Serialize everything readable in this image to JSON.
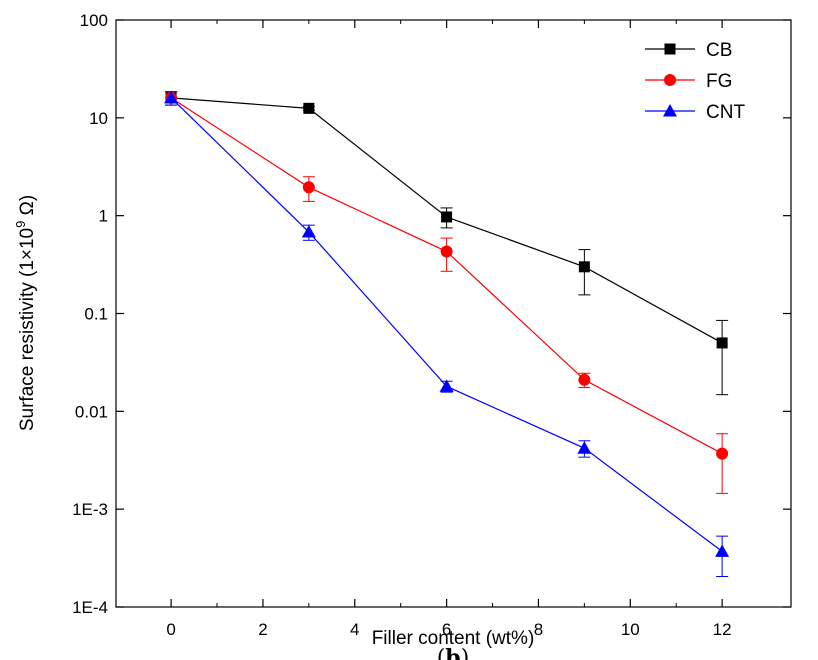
{
  "chart_data": {
    "type": "line",
    "xlabel": "Filler content (wt%)",
    "ylabel_main": "Surface resistivity (1×10",
    "ylabel_sup": "9",
    "ylabel_unit": " Ω)",
    "caption_open": "(",
    "caption_letter": "b",
    "caption_close": ")",
    "x_ticks": [
      0,
      2,
      4,
      6,
      8,
      10,
      12
    ],
    "x_tick_labels": [
      "0",
      "2",
      "4",
      "6",
      "8",
      "10",
      "12"
    ],
    "xlim": [
      -1.2,
      13.5
    ],
    "y_scale": "log",
    "ylim": [
      0.0001,
      100
    ],
    "y_ticks": [
      0.0001,
      0.001,
      0.01,
      0.1,
      1,
      10,
      100
    ],
    "y_tick_labels": [
      "1E-4",
      "1E-3",
      "0.01",
      "0.1",
      "1",
      "10",
      "100"
    ],
    "legend_position": "top-right",
    "x": [
      0,
      3,
      6,
      9,
      12
    ],
    "series": [
      {
        "name": "CB",
        "marker": "square",
        "color": "#000000",
        "values": [
          16,
          12.5,
          0.97,
          0.3,
          0.05
        ],
        "err_low": [
          13.5,
          12.0,
          0.75,
          0.155,
          0.0148
        ],
        "err_high": [
          18.5,
          13.0,
          1.2,
          0.45,
          0.085
        ]
      },
      {
        "name": "FG",
        "marker": "circle",
        "color": "#ff0000",
        "values": [
          16,
          1.95,
          0.43,
          0.021,
          0.0037
        ],
        "err_low": [
          13.5,
          1.4,
          0.27,
          0.0175,
          0.00145
        ],
        "err_high": [
          18.5,
          2.5,
          0.59,
          0.0245,
          0.0059
        ]
      },
      {
        "name": "CNT",
        "marker": "triangle",
        "color": "#0000ff",
        "values": [
          16,
          0.68,
          0.018,
          0.0042,
          0.00037
        ],
        "err_low": [
          13.5,
          0.56,
          0.0157,
          0.0034,
          0.000205
        ],
        "err_high": [
          18.5,
          0.8,
          0.0203,
          0.005,
          0.00053
        ]
      }
    ]
  }
}
